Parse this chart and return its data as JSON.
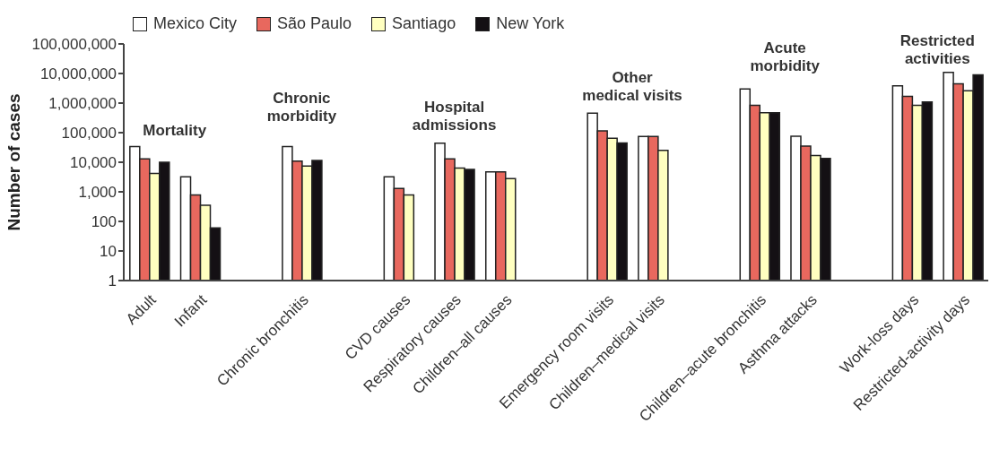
{
  "chart_data": {
    "type": "bar",
    "ylabel": "Number of cases",
    "categories": [
      "Adult",
      "Infant",
      null,
      "Chronic bronchitis",
      null,
      "CVD causes",
      "Respiratory causes",
      "Children–all causes",
      null,
      "Emergency room visits",
      "Children–medical visits",
      null,
      "Children–acute bronchitis",
      "Asthma attacks",
      null,
      "Work-loss days",
      "Restricted-activity days"
    ],
    "series": [
      {
        "name": "Mexico City",
        "color": "#ffffff",
        "values": [
          34000,
          3200,
          null,
          34000,
          null,
          3200,
          44000,
          4700,
          null,
          460000,
          74000,
          null,
          3000000,
          76000,
          null,
          3800000,
          11000000
        ]
      },
      {
        "name": "São Paulo",
        "color": "#e8685e",
        "values": [
          13000,
          780,
          null,
          11000,
          null,
          1300,
          13000,
          4700,
          null,
          115000,
          74000,
          null,
          840000,
          35000,
          null,
          1700000,
          4500000
        ]
      },
      {
        "name": "Santiago",
        "color": "#ffffc0",
        "values": [
          4200,
          350,
          null,
          7400,
          null,
          780,
          6400,
          2800,
          null,
          65000,
          25000,
          null,
          470000,
          17000,
          null,
          840000,
          2600000
        ]
      },
      {
        "name": "New York",
        "color": "#141014",
        "values": [
          10000,
          60,
          null,
          11500,
          null,
          null,
          5700,
          null,
          null,
          45000,
          null,
          null,
          470000,
          13500,
          null,
          1100000,
          9000000
        ]
      }
    ],
    "ylim": [
      1,
      100000000
    ],
    "yticks": [
      1,
      10,
      100,
      {
        "value": 1000,
        "label": "1,000"
      },
      {
        "value": 10000,
        "label": "10,000"
      },
      {
        "value": 100000,
        "label": "100,000"
      },
      {
        "value": 1000000,
        "label": "1,000,000"
      },
      {
        "value": 10000000,
        "label": "10,000,000"
      },
      {
        "value": 100000000,
        "label": "100,000,000"
      }
    ],
    "log": "y",
    "legend": "top left",
    "annotations": [
      "Mortality",
      "Chronic\nmorbidity",
      "Hospital\nadmissions",
      "Other\nmedical visits",
      "Acute\nmorbidity",
      "Restricted\nactivities"
    ]
  }
}
